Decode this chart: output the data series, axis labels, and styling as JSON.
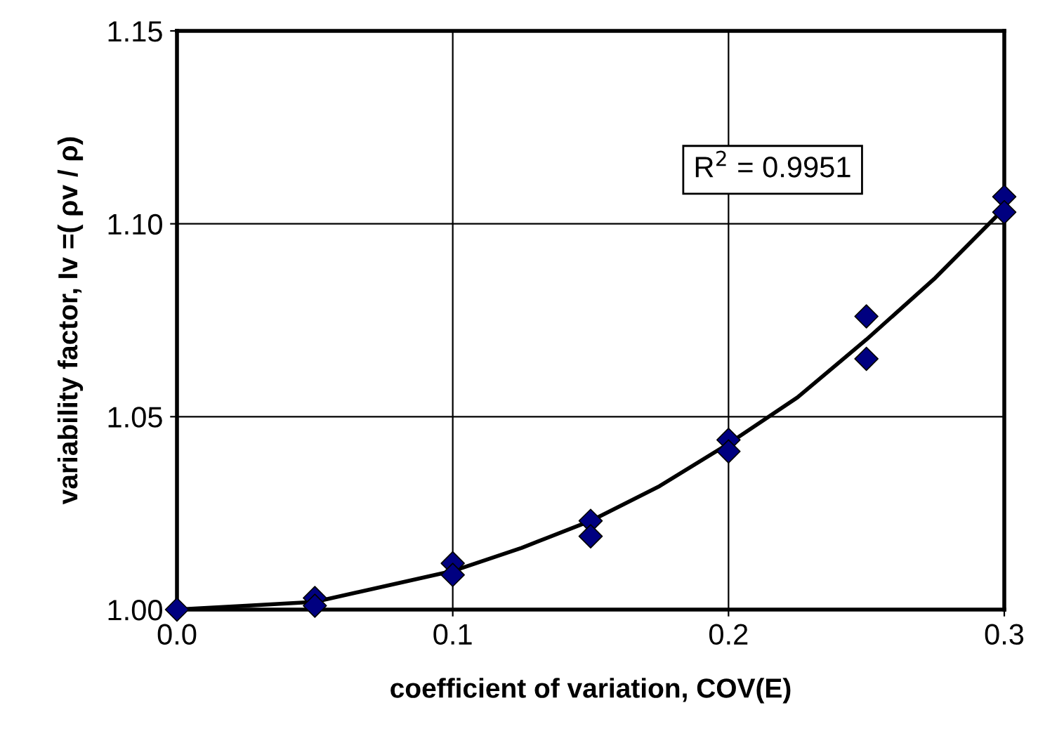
{
  "chart_data": {
    "type": "scatter",
    "xlabel": "coefficient of variation, COV(E)",
    "ylabel": "variability factor, Iv =( ρv / ρ)",
    "xlim": [
      0,
      0.3
    ],
    "ylim": [
      1.0,
      1.15
    ],
    "xticks": [
      {
        "value": 0,
        "label": "0.0"
      },
      0.1,
      0.2,
      0.3
    ],
    "yticks": [
      {
        "value": 1.0,
        "label": "1.00"
      },
      1.05,
      {
        "value": 1.1,
        "label": "1.10"
      },
      1.15
    ],
    "grid": true,
    "legend": false,
    "series": [
      {
        "color": "#000080",
        "marker": "diamond",
        "x": [
          0,
          0.05,
          0.05,
          0.1,
          0.1,
          0.15,
          0.15,
          0.2,
          0.2,
          0.25,
          0.25,
          0.3,
          0.3
        ],
        "values": [
          1.0,
          1.003,
          1.001,
          1.012,
          1.009,
          1.023,
          1.019,
          1.044,
          1.041,
          1.076,
          1.065,
          1.107,
          1.103
        ]
      },
      {
        "type": "line",
        "color": "#000000",
        "marker": "none",
        "line_style": "solid",
        "x": [
          0,
          0.025,
          0.05,
          0.075,
          0.1,
          0.125,
          0.15,
          0.175,
          0.2,
          0.225,
          0.25,
          0.275,
          0.3
        ],
        "values": [
          1.0,
          1.001,
          1.002,
          1.006,
          1.01,
          1.016,
          1.023,
          1.032,
          1.043,
          1.055,
          1.07,
          1.086,
          1.104
        ]
      }
    ],
    "annotations": [
      "R$^{2}$ = 0.9951"
    ]
  }
}
